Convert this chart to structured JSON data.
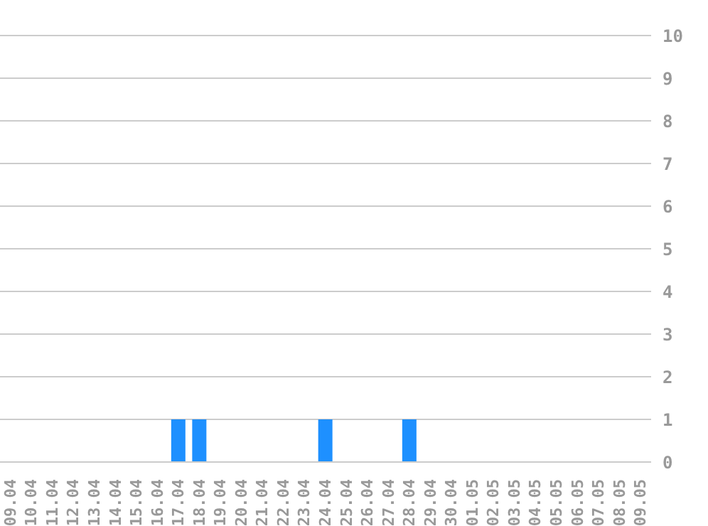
{
  "chart_data": {
    "type": "bar",
    "categories": [
      "09.04",
      "10.04",
      "11.04",
      "12.04",
      "13.04",
      "14.04",
      "15.04",
      "16.04",
      "17.04",
      "18.04",
      "19.04",
      "20.04",
      "21.04",
      "22.04",
      "23.04",
      "24.04",
      "25.04",
      "26.04",
      "27.04",
      "28.04",
      "29.04",
      "30.04",
      "01.05",
      "02.05",
      "03.05",
      "04.05",
      "05.05",
      "06.05",
      "07.05",
      "08.05",
      "09.05"
    ],
    "values": [
      0,
      0,
      0,
      0,
      0,
      0,
      0,
      0,
      1,
      1,
      0,
      0,
      0,
      0,
      0,
      1,
      0,
      0,
      0,
      1,
      0,
      0,
      0,
      0,
      0,
      0,
      0,
      0,
      0,
      0,
      0
    ],
    "color": "#1e90ff",
    "ylim": [
      0,
      10
    ],
    "yticks": [
      0,
      1,
      2,
      3,
      4,
      5,
      6,
      7,
      8,
      9,
      10
    ],
    "grid": "y",
    "legend": false
  }
}
